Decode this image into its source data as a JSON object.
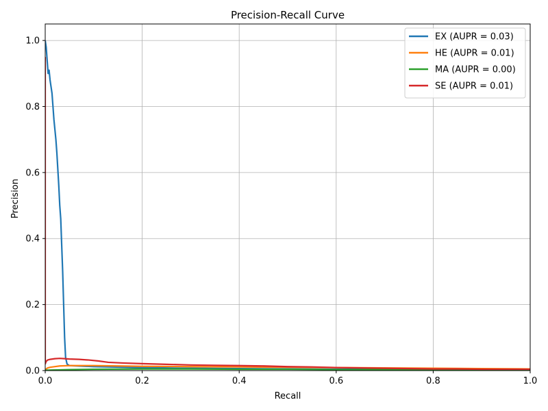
{
  "chart_data": {
    "type": "line",
    "title": "Precision-Recall Curve",
    "xlabel": "Recall",
    "ylabel": "Precision",
    "xlim": [
      0,
      1.0
    ],
    "ylim": [
      0,
      1.05
    ],
    "xticks": [
      0.0,
      0.2,
      0.4,
      0.6,
      0.8,
      1.0
    ],
    "xtick_labels": [
      "0.0",
      "0.2",
      "0.4",
      "0.6",
      "0.8",
      "1.0"
    ],
    "yticks": [
      0.0,
      0.2,
      0.4,
      0.6,
      0.8,
      1.0
    ],
    "ytick_labels": [
      "0.0",
      "0.2",
      "0.4",
      "0.6",
      "0.8",
      "1.0"
    ],
    "grid": true,
    "legend_position": "top-right",
    "series": [
      {
        "name": "EX (AUPR = 0.03)",
        "color": "#1f77b4",
        "points": [
          [
            0.0,
            1.0
          ],
          [
            0.002,
            0.98
          ],
          [
            0.004,
            0.94
          ],
          [
            0.006,
            0.9
          ],
          [
            0.008,
            0.91
          ],
          [
            0.01,
            0.88
          ],
          [
            0.012,
            0.86
          ],
          [
            0.014,
            0.84
          ],
          [
            0.016,
            0.8
          ],
          [
            0.018,
            0.76
          ],
          [
            0.02,
            0.73
          ],
          [
            0.022,
            0.7
          ],
          [
            0.024,
            0.66
          ],
          [
            0.026,
            0.61
          ],
          [
            0.028,
            0.56
          ],
          [
            0.03,
            0.5
          ],
          [
            0.032,
            0.46
          ],
          [
            0.034,
            0.38
          ],
          [
            0.036,
            0.3
          ],
          [
            0.038,
            0.2
          ],
          [
            0.04,
            0.1
          ],
          [
            0.042,
            0.04
          ],
          [
            0.045,
            0.02
          ],
          [
            0.05,
            0.015
          ],
          [
            0.1,
            0.012
          ],
          [
            0.2,
            0.009
          ],
          [
            0.3,
            0.007
          ],
          [
            0.4,
            0.006
          ],
          [
            0.5,
            0.005
          ],
          [
            0.6,
            0.004
          ],
          [
            0.7,
            0.004
          ],
          [
            0.8,
            0.003
          ],
          [
            0.9,
            0.003
          ],
          [
            1.0,
            0.003
          ]
        ]
      },
      {
        "name": "HE (AUPR = 0.01)",
        "color": "#ff7f0e",
        "points": [
          [
            0.0,
            0.0
          ],
          [
            0.002,
            0.005
          ],
          [
            0.005,
            0.008
          ],
          [
            0.01,
            0.01
          ],
          [
            0.02,
            0.012
          ],
          [
            0.03,
            0.014
          ],
          [
            0.05,
            0.015
          ],
          [
            0.08,
            0.015
          ],
          [
            0.1,
            0.015
          ],
          [
            0.15,
            0.014
          ],
          [
            0.2,
            0.013
          ],
          [
            0.3,
            0.012
          ],
          [
            0.4,
            0.011
          ],
          [
            0.5,
            0.01
          ],
          [
            0.6,
            0.009
          ],
          [
            0.7,
            0.008
          ],
          [
            0.8,
            0.007
          ],
          [
            0.9,
            0.006
          ],
          [
            1.0,
            0.005
          ]
        ]
      },
      {
        "name": "MA (AUPR = 0.00)",
        "color": "#2ca02c",
        "points": [
          [
            0.0,
            0.001
          ],
          [
            0.05,
            0.003
          ],
          [
            0.1,
            0.004
          ],
          [
            0.2,
            0.005
          ],
          [
            0.3,
            0.005
          ],
          [
            0.4,
            0.004
          ],
          [
            0.5,
            0.004
          ],
          [
            0.6,
            0.003
          ],
          [
            0.7,
            0.003
          ],
          [
            0.8,
            0.003
          ],
          [
            0.9,
            0.002
          ],
          [
            1.0,
            0.002
          ]
        ]
      },
      {
        "name": "SE (AUPR = 0.01)",
        "color": "#d62728",
        "points": [
          [
            0.0,
            0.95
          ],
          [
            0.0,
            0.02
          ],
          [
            0.002,
            0.028
          ],
          [
            0.005,
            0.032
          ],
          [
            0.01,
            0.034
          ],
          [
            0.015,
            0.035
          ],
          [
            0.02,
            0.036
          ],
          [
            0.03,
            0.037
          ],
          [
            0.04,
            0.036
          ],
          [
            0.05,
            0.035
          ],
          [
            0.07,
            0.034
          ],
          [
            0.09,
            0.032
          ],
          [
            0.11,
            0.029
          ],
          [
            0.13,
            0.025
          ],
          [
            0.16,
            0.023
          ],
          [
            0.2,
            0.021
          ],
          [
            0.25,
            0.019
          ],
          [
            0.3,
            0.017
          ],
          [
            0.35,
            0.016
          ],
          [
            0.4,
            0.015
          ],
          [
            0.45,
            0.014
          ],
          [
            0.5,
            0.012
          ],
          [
            0.55,
            0.011
          ],
          [
            0.6,
            0.009
          ],
          [
            0.65,
            0.008
          ],
          [
            0.7,
            0.007
          ],
          [
            0.75,
            0.006
          ],
          [
            0.8,
            0.005
          ],
          [
            0.85,
            0.005
          ],
          [
            0.9,
            0.004
          ],
          [
            0.95,
            0.004
          ],
          [
            1.0,
            0.004
          ]
        ]
      }
    ]
  }
}
